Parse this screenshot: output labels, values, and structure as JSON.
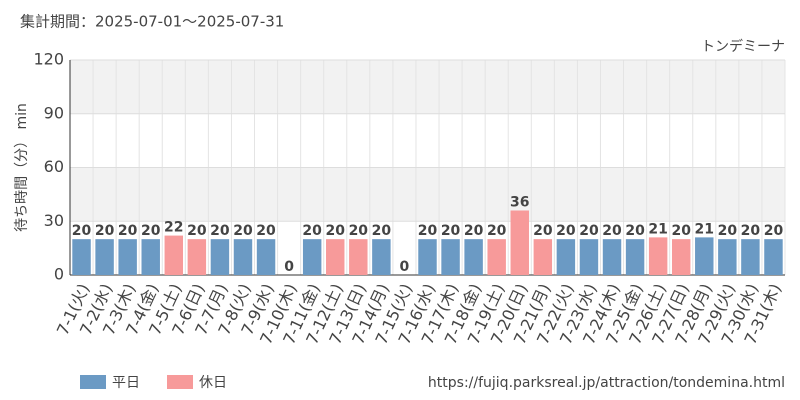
{
  "chart_data": {
    "type": "bar",
    "period": "集計期間：2025-07-01～2025-07-31",
    "title": "トンデミーナ",
    "y_label": "待ち時間（分） min",
    "source": "https://fujiq.parksreal.jp/attraction/tondemina.html",
    "categories": [
      "7-1(火)",
      "7-2(水)",
      "7-3(木)",
      "7-4(金)",
      "7-5(土)",
      "7-6(日)",
      "7-7(月)",
      "7-8(火)",
      "7-9(水)",
      "7-10(木)",
      "7-11(金)",
      "7-12(土)",
      "7-13(日)",
      "7-14(月)",
      "7-15(火)",
      "7-16(水)",
      "7-17(木)",
      "7-18(金)",
      "7-19(土)",
      "7-20(日)",
      "7-21(月)",
      "7-22(火)",
      "7-23(水)",
      "7-24(木)",
      "7-25(金)",
      "7-26(土)",
      "7-27(日)",
      "7-28(月)",
      "7-29(火)",
      "7-30(水)",
      "7-31(木)"
    ],
    "series": [
      {
        "name": "平日",
        "color": "#6b9ac4",
        "label_color": "#4f7fae",
        "values": [
          20,
          20,
          20,
          20,
          null,
          null,
          20,
          20,
          20,
          0,
          20,
          null,
          null,
          20,
          0,
          20,
          20,
          20,
          null,
          null,
          null,
          20,
          20,
          20,
          20,
          null,
          null,
          21,
          20,
          20,
          20
        ]
      },
      {
        "name": "休日",
        "color": "#f79a9a",
        "label_color": "#f07a7a",
        "values": [
          null,
          null,
          null,
          null,
          22,
          20,
          null,
          null,
          null,
          null,
          null,
          20,
          20,
          null,
          null,
          null,
          null,
          null,
          20,
          36,
          20,
          null,
          null,
          null,
          null,
          21,
          20,
          null,
          null,
          null,
          null
        ]
      }
    ],
    "ylim": [
      0,
      120
    ],
    "yticks": [
      0,
      30,
      60,
      90,
      120
    ],
    "grid": true
  }
}
